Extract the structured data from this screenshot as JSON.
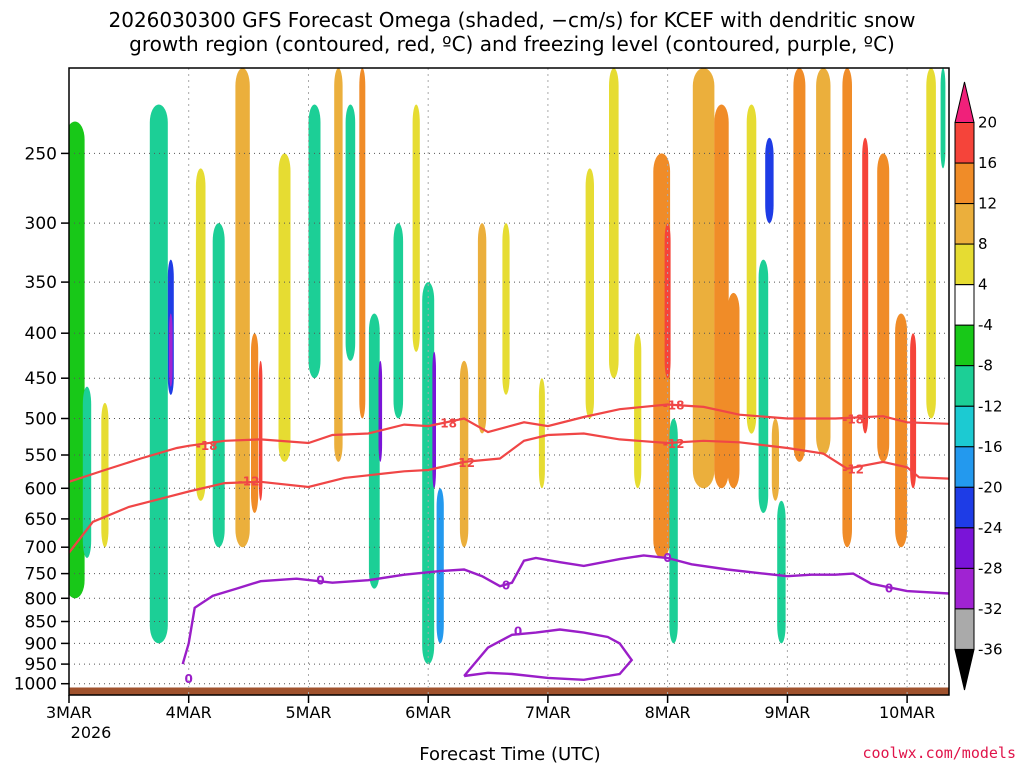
{
  "chart_data": {
    "type": "heatmap",
    "title_line1": "2026030300 GFS Forecast Omega (shaded, −cm/s) for KCEF with dendritic snow",
    "title_line2": "growth region (contoured, red, ºC) and freezing level (contoured, purple, ºC)",
    "xlabel": "Forecast Time (UTC)",
    "ylabel": "Pressure (hPa)",
    "x_ticks": [
      "3MAR",
      "4MAR",
      "5MAR",
      "6MAR",
      "7MAR",
      "8MAR",
      "9MAR",
      "10MAR"
    ],
    "x_year": "2026",
    "x_range_days": [
      0,
      7.35
    ],
    "y_ticks": [
      250,
      300,
      350,
      400,
      450,
      500,
      550,
      600,
      650,
      700,
      750,
      800,
      850,
      900,
      950,
      1000
    ],
    "y_range_hpa": [
      200,
      1030
    ],
    "colorbar": {
      "labels": [
        "20",
        "16",
        "12",
        "8",
        "4",
        "-4",
        "-8",
        "-12",
        "-16",
        "-20",
        "-24",
        "-28",
        "-32",
        "-36"
      ],
      "colors": [
        "#f0207a",
        "#f5443a",
        "#f08c28",
        "#ebaf3c",
        "#e6dc32",
        "#ffffff",
        "#18c818",
        "#1ccf96",
        "#1ccad2",
        "#2399ee",
        "#1e3ce6",
        "#7a14d8",
        "#a023d2",
        "#aaaaaa",
        "#000000"
      ]
    },
    "contour_labels": {
      "dendritic_m18": "-18",
      "dendritic_m12": "-12",
      "freezing": "0"
    },
    "contours": {
      "dendritic_m18": [
        [
          0,
          590
        ],
        [
          0.3,
          572
        ],
        [
          0.6,
          555
        ],
        [
          0.9,
          540
        ],
        [
          1.0,
          537
        ],
        [
          1.3,
          530
        ],
        [
          1.6,
          528
        ],
        [
          2.0,
          533
        ],
        [
          2.2,
          522
        ],
        [
          2.5,
          520
        ],
        [
          2.8,
          508
        ],
        [
          3.0,
          510
        ],
        [
          3.3,
          500
        ],
        [
          3.5,
          518
        ],
        [
          3.8,
          505
        ],
        [
          4.0,
          510
        ],
        [
          4.3,
          498
        ],
        [
          4.6,
          488
        ],
        [
          5.0,
          482
        ],
        [
          5.3,
          485
        ],
        [
          5.6,
          495
        ],
        [
          6.0,
          500
        ],
        [
          6.4,
          500
        ],
        [
          6.8,
          497
        ],
        [
          7.0,
          505
        ],
        [
          7.35,
          507
        ]
      ],
      "dendritic_m12": [
        [
          0,
          710
        ],
        [
          0.2,
          655
        ],
        [
          0.5,
          630
        ],
        [
          0.8,
          615
        ],
        [
          1.0,
          605
        ],
        [
          1.3,
          592
        ],
        [
          1.6,
          590
        ],
        [
          2.0,
          598
        ],
        [
          2.3,
          584
        ],
        [
          2.5,
          580
        ],
        [
          2.8,
          574
        ],
        [
          3.0,
          572
        ],
        [
          3.3,
          560
        ],
        [
          3.6,
          555
        ],
        [
          3.8,
          530
        ],
        [
          4.0,
          522
        ],
        [
          4.3,
          520
        ],
        [
          4.6,
          528
        ],
        [
          5.0,
          533
        ],
        [
          5.3,
          530
        ],
        [
          5.6,
          532
        ],
        [
          6.0,
          540
        ],
        [
          6.3,
          548
        ],
        [
          6.5,
          570
        ],
        [
          6.8,
          560
        ],
        [
          7.0,
          568
        ],
        [
          7.1,
          583
        ],
        [
          7.35,
          585
        ]
      ],
      "freezing_upper": [
        [
          0.95,
          950
        ],
        [
          1.0,
          900
        ],
        [
          1.05,
          820
        ],
        [
          1.2,
          795
        ],
        [
          1.4,
          780
        ],
        [
          1.6,
          765
        ],
        [
          1.9,
          760
        ],
        [
          2.2,
          768
        ],
        [
          2.5,
          763
        ],
        [
          2.8,
          752
        ],
        [
          3.1,
          745
        ],
        [
          3.3,
          742
        ],
        [
          3.45,
          755
        ],
        [
          3.6,
          775
        ],
        [
          3.7,
          768
        ],
        [
          3.8,
          725
        ],
        [
          3.9,
          720
        ],
        [
          4.1,
          728
        ],
        [
          4.3,
          735
        ],
        [
          4.6,
          722
        ],
        [
          4.8,
          715
        ],
        [
          5.0,
          720
        ],
        [
          5.2,
          732
        ],
        [
          5.5,
          742
        ],
        [
          5.8,
          750
        ],
        [
          6.0,
          755
        ],
        [
          6.2,
          752
        ],
        [
          6.4,
          752
        ],
        [
          6.55,
          750
        ],
        [
          6.7,
          770
        ],
        [
          7.0,
          785
        ],
        [
          7.35,
          790
        ]
      ],
      "freezing_lower": [
        [
          3.3,
          980
        ],
        [
          3.5,
          910
        ],
        [
          3.7,
          880
        ],
        [
          3.9,
          875
        ],
        [
          4.1,
          868
        ],
        [
          4.3,
          875
        ],
        [
          4.5,
          885
        ],
        [
          4.6,
          900
        ],
        [
          4.7,
          940
        ],
        [
          4.6,
          975
        ],
        [
          4.3,
          990
        ],
        [
          4.0,
          985
        ],
        [
          3.7,
          975
        ],
        [
          3.5,
          972
        ],
        [
          3.3,
          980
        ]
      ]
    },
    "cells": [
      {
        "t": 0.05,
        "p1": 230,
        "p2": 800,
        "v": -6,
        "w": 0.16
      },
      {
        "t": 0.15,
        "p1": 460,
        "p2": 720,
        "v": -8,
        "w": 0.07
      },
      {
        "t": 0.3,
        "p1": 480,
        "p2": 700,
        "v": 6,
        "w": 0.06
      },
      {
        "t": 0.75,
        "p1": 220,
        "p2": 900,
        "v": -8,
        "w": 0.15
      },
      {
        "t": 0.85,
        "p1": 330,
        "p2": 470,
        "v": -22,
        "w": 0.05
      },
      {
        "t": 0.85,
        "p1": 380,
        "p2": 460,
        "v": -30,
        "w": 0.03
      },
      {
        "t": 1.1,
        "p1": 260,
        "p2": 620,
        "v": 6,
        "w": 0.08
      },
      {
        "t": 1.25,
        "p1": 300,
        "p2": 700,
        "v": -8,
        "w": 0.1
      },
      {
        "t": 1.45,
        "p1": 200,
        "p2": 700,
        "v": 8,
        "w": 0.12
      },
      {
        "t": 1.55,
        "p1": 400,
        "p2": 640,
        "v": 14,
        "w": 0.06
      },
      {
        "t": 1.6,
        "p1": 430,
        "p2": 620,
        "v": 18,
        "w": 0.03
      },
      {
        "t": 1.8,
        "p1": 250,
        "p2": 560,
        "v": 6,
        "w": 0.1
      },
      {
        "t": 2.05,
        "p1": 220,
        "p2": 450,
        "v": -8,
        "w": 0.1
      },
      {
        "t": 2.25,
        "p1": 200,
        "p2": 560,
        "v": 8,
        "w": 0.07
      },
      {
        "t": 2.35,
        "p1": 220,
        "p2": 430,
        "v": -8,
        "w": 0.08
      },
      {
        "t": 2.45,
        "p1": 200,
        "p2": 500,
        "v": 12,
        "w": 0.05
      },
      {
        "t": 2.55,
        "p1": 380,
        "p2": 780,
        "v": -8,
        "w": 0.09
      },
      {
        "t": 2.6,
        "p1": 430,
        "p2": 560,
        "v": -24,
        "w": 0.03
      },
      {
        "t": 2.75,
        "p1": 300,
        "p2": 500,
        "v": -8,
        "w": 0.08
      },
      {
        "t": 2.9,
        "p1": 220,
        "p2": 420,
        "v": 6,
        "w": 0.06
      },
      {
        "t": 3.0,
        "p1": 350,
        "p2": 950,
        "v": -10,
        "w": 0.1
      },
      {
        "t": 3.05,
        "p1": 420,
        "p2": 600,
        "v": -24,
        "w": 0.03
      },
      {
        "t": 3.1,
        "p1": 600,
        "p2": 900,
        "v": -16,
        "w": 0.06
      },
      {
        "t": 3.3,
        "p1": 430,
        "p2": 700,
        "v": 8,
        "w": 0.07
      },
      {
        "t": 3.45,
        "p1": 300,
        "p2": 520,
        "v": 8,
        "w": 0.07
      },
      {
        "t": 3.65,
        "p1": 300,
        "p2": 470,
        "v": 6,
        "w": 0.06
      },
      {
        "t": 3.95,
        "p1": 450,
        "p2": 600,
        "v": 6,
        "w": 0.05
      },
      {
        "t": 4.35,
        "p1": 260,
        "p2": 500,
        "v": 6,
        "w": 0.07
      },
      {
        "t": 4.55,
        "p1": 200,
        "p2": 450,
        "v": 6,
        "w": 0.08
      },
      {
        "t": 4.75,
        "p1": 400,
        "p2": 600,
        "v": 6,
        "w": 0.06
      },
      {
        "t": 4.95,
        "p1": 250,
        "p2": 720,
        "v": 12,
        "w": 0.14
      },
      {
        "t": 5.0,
        "p1": 300,
        "p2": 450,
        "v": 18,
        "w": 0.05
      },
      {
        "t": 5.05,
        "p1": 500,
        "p2": 900,
        "v": -8,
        "w": 0.07
      },
      {
        "t": 5.3,
        "p1": 200,
        "p2": 600,
        "v": 10,
        "w": 0.18
      },
      {
        "t": 5.45,
        "p1": 220,
        "p2": 600,
        "v": 12,
        "w": 0.12
      },
      {
        "t": 5.55,
        "p1": 360,
        "p2": 600,
        "v": 12,
        "w": 0.1
      },
      {
        "t": 5.7,
        "p1": 220,
        "p2": 520,
        "v": 6,
        "w": 0.08
      },
      {
        "t": 5.8,
        "p1": 330,
        "p2": 640,
        "v": -8,
        "w": 0.08
      },
      {
        "t": 5.85,
        "p1": 240,
        "p2": 300,
        "v": -20,
        "w": 0.07
      },
      {
        "t": 5.9,
        "p1": 500,
        "p2": 620,
        "v": 8,
        "w": 0.06
      },
      {
        "t": 5.95,
        "p1": 620,
        "p2": 900,
        "v": -8,
        "w": 0.07
      },
      {
        "t": 6.1,
        "p1": 200,
        "p2": 560,
        "v": 12,
        "w": 0.1
      },
      {
        "t": 6.3,
        "p1": 200,
        "p2": 550,
        "v": 8,
        "w": 0.12
      },
      {
        "t": 6.5,
        "p1": 200,
        "p2": 700,
        "v": 14,
        "w": 0.08
      },
      {
        "t": 6.65,
        "p1": 240,
        "p2": 520,
        "v": 18,
        "w": 0.05
      },
      {
        "t": 6.8,
        "p1": 250,
        "p2": 560,
        "v": 12,
        "w": 0.1
      },
      {
        "t": 6.95,
        "p1": 380,
        "p2": 700,
        "v": 12,
        "w": 0.1
      },
      {
        "t": 7.05,
        "p1": 400,
        "p2": 600,
        "v": 18,
        "w": 0.05
      },
      {
        "t": 7.2,
        "p1": 200,
        "p2": 500,
        "v": 6,
        "w": 0.08
      },
      {
        "t": 7.3,
        "p1": 200,
        "p2": 260,
        "v": -10,
        "w": 0.04
      }
    ]
  },
  "credit": "coolwx.com/models"
}
